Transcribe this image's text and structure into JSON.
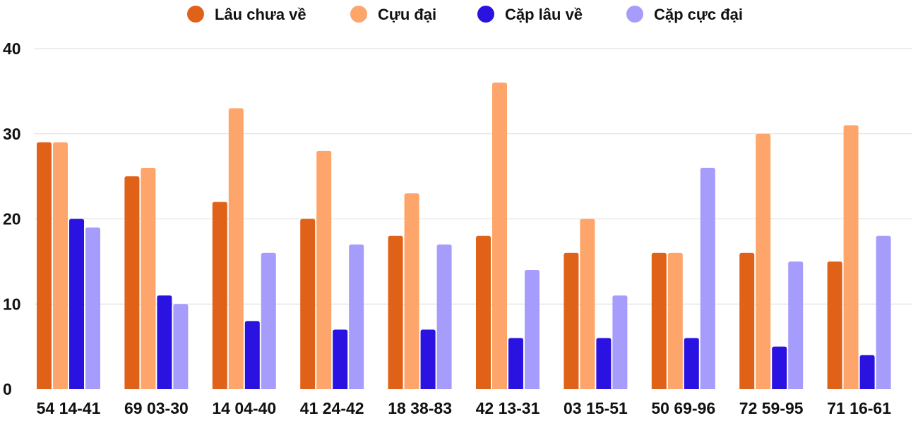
{
  "chart_data": {
    "type": "bar",
    "title": "",
    "xlabel": "",
    "ylabel": "",
    "ylim": [
      0,
      40
    ],
    "yticks": [
      0,
      10,
      20,
      30,
      40
    ],
    "grid": true,
    "legend_position": "top",
    "categories": [
      "54 14-41",
      "69 03-30",
      "14 04-40",
      "41 24-42",
      "18 38-83",
      "42 13-31",
      "03 15-51",
      "50 69-96",
      "72 59-95",
      "71 16-61"
    ],
    "series": [
      {
        "name": "Lâu chưa về",
        "color": "#e06218",
        "values": [
          29,
          25,
          22,
          20,
          18,
          18,
          16,
          16,
          16,
          15
        ]
      },
      {
        "name": "Cựu đại",
        "color": "#fda56a",
        "values": [
          29,
          26,
          33,
          28,
          23,
          36,
          20,
          16,
          30,
          31
        ]
      },
      {
        "name": "Cặp lâu về",
        "color": "#2a12e0",
        "values": [
          20,
          11,
          8,
          7,
          7,
          6,
          6,
          6,
          5,
          4
        ]
      },
      {
        "name": "Cặp cực đại",
        "color": "#a59cfb",
        "values": [
          19,
          10,
          16,
          17,
          17,
          14,
          11,
          26,
          15,
          18
        ]
      }
    ]
  }
}
